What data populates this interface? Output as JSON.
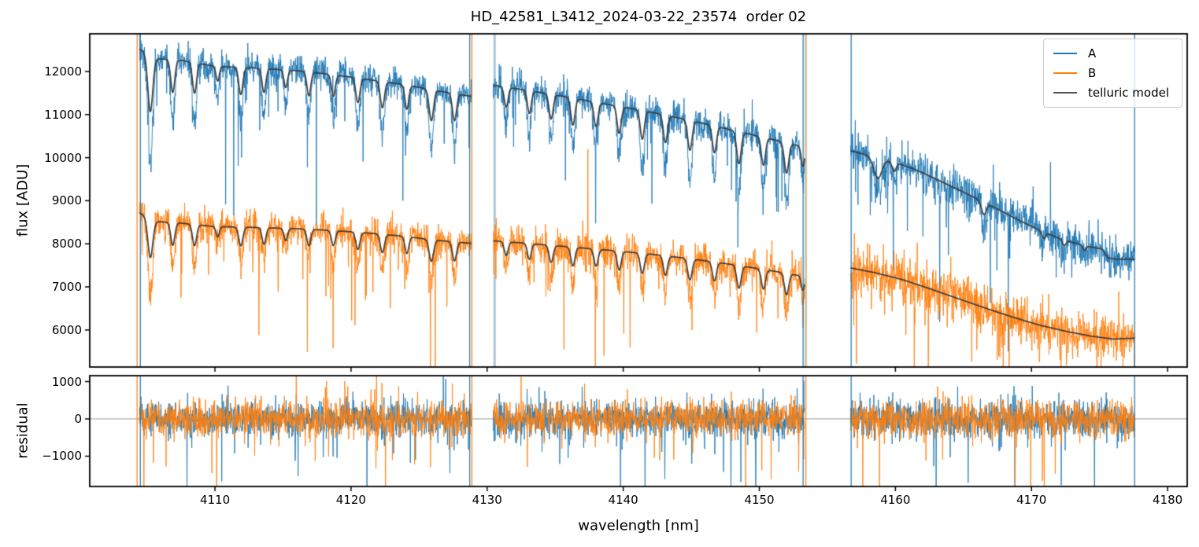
{
  "title": "HD_42581_L3412_2024-03-22_23574  order 02",
  "legend": {
    "items": [
      {
        "label": "A",
        "color": "#1f77b4"
      },
      {
        "label": "B",
        "color": "#ff7f0e"
      },
      {
        "label": "telluric model",
        "color": "#555555"
      }
    ]
  },
  "chart_data": {
    "type": "line",
    "title": "HD_42581_L3412_2024-03-22_23574  order 02",
    "xlabel": "wavelength [nm]",
    "xlim": [
      4100.8,
      4181.44
    ],
    "xticks": [
      4110,
      4120,
      4130,
      4140,
      4150,
      4160,
      4170,
      4180
    ],
    "flux_panel": {
      "ylabel": "flux [ADU]",
      "ylim": [
        5140,
        12875
      ],
      "yticks": [
        6000,
        7000,
        8000,
        9000,
        10000,
        11000,
        12000
      ]
    },
    "residual_panel": {
      "ylabel": "residual",
      "ylim": [
        -1811,
        1158
      ],
      "yticks": [
        -1000,
        0,
        1000
      ],
      "zero_line": true
    },
    "series_colors": {
      "A": "#1f77b4",
      "B": "#ff7f0e",
      "telluric": "#3d3d3d"
    },
    "special_colors": {
      "pale": "#adc6da",
      "tan": "#d3c4a2"
    },
    "noise_seed": 7,
    "sample_step_nm": 0.022,
    "data_line_depth_boost": 1.9,
    "segments": [
      {
        "x_range": [
          4104.45,
          4128.85
        ],
        "telluric_A": [
          [
            4104.45,
            12520
          ],
          [
            4105.6,
            12300
          ],
          [
            4107.5,
            12260
          ],
          [
            4110,
            12120
          ],
          [
            4113,
            12080
          ],
          [
            4116,
            12020
          ],
          [
            4118,
            11950
          ],
          [
            4120,
            11870
          ],
          [
            4122,
            11780
          ],
          [
            4124,
            11690
          ],
          [
            4126,
            11570
          ],
          [
            4128.85,
            11420
          ]
        ],
        "telluric_B": [
          [
            4104.45,
            8720
          ],
          [
            4105.6,
            8520
          ],
          [
            4107.5,
            8480
          ],
          [
            4110,
            8400
          ],
          [
            4113,
            8380
          ],
          [
            4116,
            8350
          ],
          [
            4118,
            8320
          ],
          [
            4120,
            8280
          ],
          [
            4122,
            8230
          ],
          [
            4124,
            8170
          ],
          [
            4126,
            8090
          ],
          [
            4128.85,
            8010
          ]
        ],
        "absorption_lines": [
          [
            4105.25,
            0.105,
            0.18
          ],
          [
            4106.9,
            0.062,
            0.15
          ],
          [
            4108.5,
            0.058,
            0.15
          ],
          [
            4110.2,
            0.028,
            0.12
          ],
          [
            4111.9,
            0.052,
            0.15
          ],
          [
            4113.6,
            0.046,
            0.14
          ],
          [
            4115.2,
            0.034,
            0.13
          ],
          [
            4116.9,
            0.046,
            0.14
          ],
          [
            4118.7,
            0.042,
            0.14
          ],
          [
            4120.5,
            0.048,
            0.15
          ],
          [
            4122.3,
            0.052,
            0.15
          ],
          [
            4124.1,
            0.048,
            0.14
          ],
          [
            4125.9,
            0.062,
            0.16
          ],
          [
            4127.6,
            0.055,
            0.15
          ]
        ],
        "lines_on_B": true,
        "noise_sigma_A": 170,
        "noise_sigma_B": 175,
        "residual_sigma": 230
      },
      {
        "x_range": [
          4130.45,
          4153.35
        ],
        "telluric_A": [
          [
            4130.45,
            11680
          ],
          [
            4133,
            11560
          ],
          [
            4136,
            11400
          ],
          [
            4139,
            11230
          ],
          [
            4142,
            11060
          ],
          [
            4145,
            10860
          ],
          [
            4148,
            10640
          ],
          [
            4151,
            10420
          ],
          [
            4153.35,
            10240
          ]
        ],
        "telluric_B": [
          [
            4130.45,
            8070
          ],
          [
            4133,
            8010
          ],
          [
            4136,
            7930
          ],
          [
            4139,
            7850
          ],
          [
            4142,
            7760
          ],
          [
            4145,
            7650
          ],
          [
            4148,
            7520
          ],
          [
            4151,
            7370
          ],
          [
            4153.35,
            7240
          ]
        ],
        "absorption_lines": [
          [
            4131.4,
            0.04,
            0.14
          ],
          [
            4133.1,
            0.046,
            0.14
          ],
          [
            4134.7,
            0.05,
            0.15
          ],
          [
            4136.3,
            0.055,
            0.15
          ],
          [
            4138.0,
            0.05,
            0.15
          ],
          [
            4139.7,
            0.056,
            0.15
          ],
          [
            4141.4,
            0.06,
            0.15
          ],
          [
            4143.1,
            0.058,
            0.15
          ],
          [
            4144.9,
            0.064,
            0.16
          ],
          [
            4146.7,
            0.058,
            0.15
          ],
          [
            4148.5,
            0.07,
            0.16
          ],
          [
            4150.3,
            0.062,
            0.15
          ],
          [
            4152.0,
            0.068,
            0.16
          ],
          [
            4153.2,
            0.045,
            0.12
          ]
        ],
        "lines_on_B": true,
        "noise_sigma_A": 185,
        "noise_sigma_B": 190,
        "residual_sigma": 235
      },
      {
        "x_range": [
          4156.7,
          4177.6
        ],
        "telluric_A": [
          [
            4156.7,
            10160
          ],
          [
            4158.2,
            10040
          ],
          [
            4160,
            9890
          ],
          [
            4161.5,
            9720
          ],
          [
            4163,
            9500
          ],
          [
            4165,
            9200
          ],
          [
            4167,
            8890
          ],
          [
            4169,
            8560
          ],
          [
            4170.5,
            8330
          ],
          [
            4172,
            8130
          ],
          [
            4173.5,
            7990
          ],
          [
            4174.8,
            7900
          ],
          [
            4175.2,
            7880
          ],
          [
            4175.6,
            7680
          ],
          [
            4176.2,
            7640
          ],
          [
            4177.6,
            7640
          ]
        ],
        "telluric_B": [
          [
            4156.7,
            7440
          ],
          [
            4158.5,
            7330
          ],
          [
            4160.5,
            7170
          ],
          [
            4162.5,
            6960
          ],
          [
            4164.5,
            6740
          ],
          [
            4166.5,
            6520
          ],
          [
            4168.5,
            6310
          ],
          [
            4170.5,
            6120
          ],
          [
            4172.5,
            5970
          ],
          [
            4174.5,
            5850
          ],
          [
            4176,
            5790
          ],
          [
            4177.6,
            5810
          ]
        ],
        "absorption_lines": [
          [
            4158.7,
            0.048,
            0.3
          ],
          [
            4159.9,
            0.022,
            0.15
          ],
          [
            4166.5,
            0.032,
            0.18
          ],
          [
            4170.9,
            0.018,
            0.14
          ],
          [
            4172.4,
            0.016,
            0.13
          ],
          [
            4173.9,
            0.015,
            0.12
          ]
        ],
        "lines_on_B": false,
        "noise_sigma_A": 225,
        "noise_sigma_B": 265,
        "residual_sigma": 250
      }
    ],
    "edge_spikes_flux": [
      {
        "x": 4104.28,
        "series": "B"
      },
      {
        "x": 4104.52,
        "series": "A"
      },
      {
        "x": 4128.72,
        "series": "A"
      },
      {
        "x": 4128.88,
        "series": "B"
      },
      {
        "x": 4130.55,
        "series": "pale"
      },
      {
        "x": 4153.22,
        "series": "A"
      },
      {
        "x": 4153.42,
        "series": "tan"
      },
      {
        "x": 4156.75,
        "series": "A"
      },
      {
        "x": 4177.58,
        "series": "A"
      }
    ],
    "edge_spikes_residual": [
      {
        "x": 4104.28,
        "series": "B"
      },
      {
        "x": 4104.52,
        "series": "A"
      },
      {
        "x": 4128.72,
        "series": "A"
      },
      {
        "x": 4128.88,
        "series": "B"
      },
      {
        "x": 4153.22,
        "series": "A"
      },
      {
        "x": 4153.42,
        "series": "B"
      },
      {
        "x": 4156.75,
        "series": "A"
      },
      {
        "x": 4177.58,
        "series": "A"
      }
    ]
  }
}
